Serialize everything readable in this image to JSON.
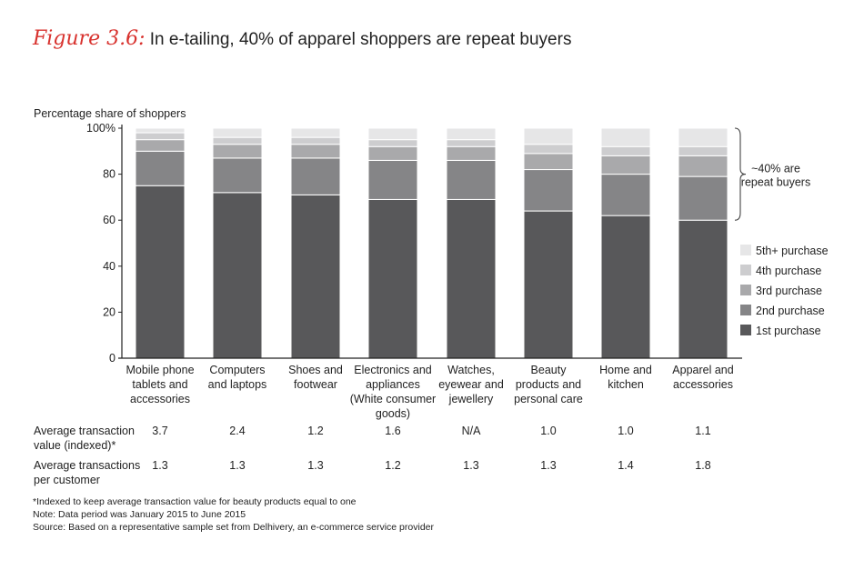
{
  "header": {
    "figure_label": "Figure 3.6:",
    "title": "In e-tailing, 40% of apparel shoppers are repeat buyers"
  },
  "chart_data": {
    "type": "bar",
    "stacked": true,
    "ylabel": "Percentage share of shoppers",
    "ylim": [
      0,
      100
    ],
    "yticks": [
      "0",
      "20",
      "40",
      "60",
      "80",
      "100%"
    ],
    "categories": [
      [
        "Mobile phone",
        "tablets and",
        "accessories"
      ],
      [
        "Computers",
        "and laptops"
      ],
      [
        "Shoes and",
        "footwear"
      ],
      [
        "Electronics and",
        "appliances",
        "(White consumer",
        "goods)"
      ],
      [
        "Watches,",
        "eyewear and",
        "jewellery"
      ],
      [
        "Beauty",
        "products and",
        "personal care"
      ],
      [
        "Home and",
        "kitchen"
      ],
      [
        "Apparel and",
        "accessories"
      ]
    ],
    "series": [
      {
        "name": "1st purchase",
        "color": "#58585a",
        "values": [
          75,
          72,
          71,
          69,
          69,
          64,
          62,
          60
        ]
      },
      {
        "name": "2nd purchase",
        "color": "#858587",
        "values": [
          15,
          15,
          16,
          17,
          17,
          18,
          18,
          19
        ]
      },
      {
        "name": "3rd purchase",
        "color": "#a9a9ab",
        "values": [
          5,
          6,
          6,
          6,
          6,
          7,
          8,
          9
        ]
      },
      {
        "name": "4th purchase",
        "color": "#cdcdcf",
        "values": [
          3,
          3,
          3,
          3,
          3,
          4,
          4,
          4
        ]
      },
      {
        "name": "5th+ purchase",
        "color": "#e6e6e7",
        "values": [
          2,
          4,
          4,
          5,
          5,
          7,
          8,
          8
        ]
      }
    ],
    "legend_position": "right",
    "annotation": [
      "~40% are",
      "repeat buyers"
    ]
  },
  "metrics": [
    {
      "label": [
        "Average transaction",
        "value (indexed)*"
      ],
      "values": [
        "3.7",
        "2.4",
        "1.2",
        "1.6",
        "N/A",
        "1.0",
        "1.0",
        "1.1"
      ]
    },
    {
      "label": [
        "Average transactions",
        "per customer"
      ],
      "values": [
        "1.3",
        "1.3",
        "1.3",
        "1.2",
        "1.3",
        "1.3",
        "1.4",
        "1.8"
      ]
    }
  ],
  "footnotes": [
    "*Indexed to keep average transaction value for beauty products equal to one",
    "Note: Data period was January 2015 to June 2015",
    "Source: Based on a representative sample set from Delhivery, an e-commerce service provider"
  ]
}
